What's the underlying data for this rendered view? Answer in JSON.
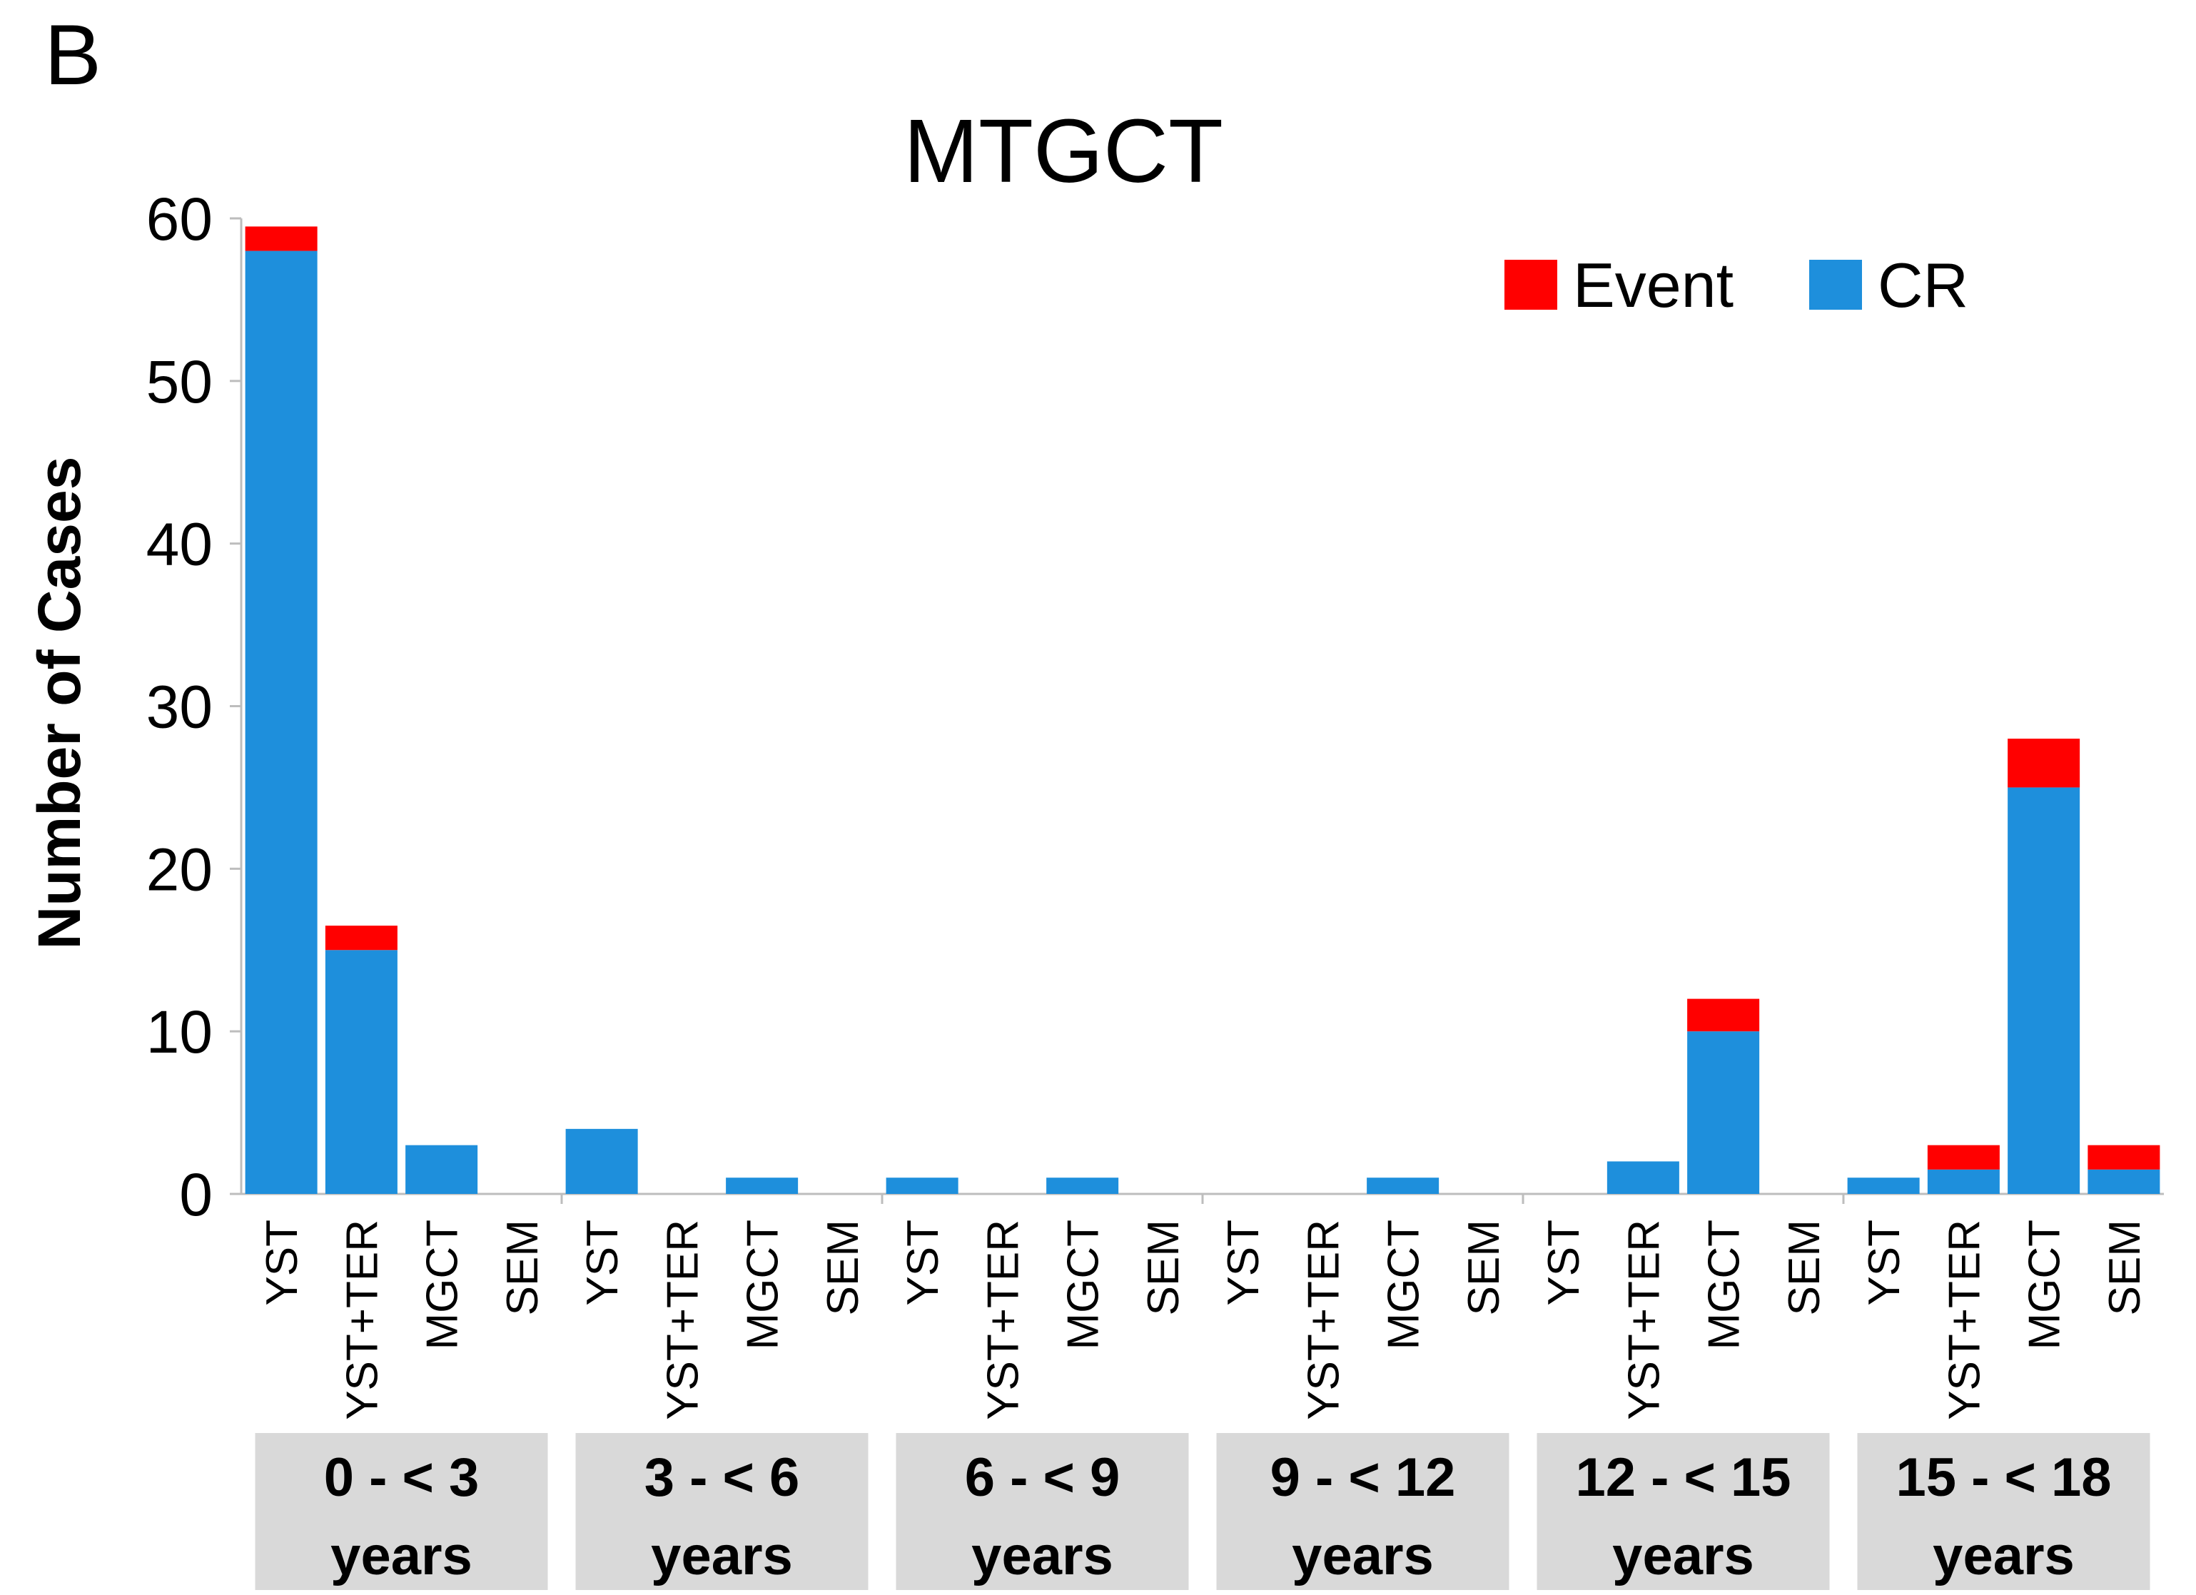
{
  "panel_label": "B",
  "chart_data": {
    "type": "bar",
    "stacked": true,
    "title": "MTGCT",
    "ylabel": "Number of Cases",
    "xlabel": "",
    "ylim": [
      0,
      60
    ],
    "yticks": [
      0,
      10,
      20,
      30,
      40,
      50,
      60
    ],
    "legend_position": "top-right",
    "series_colors": {
      "Event": "#ff0000",
      "CR": "#1e8fdc"
    },
    "legend": [
      "Event",
      "CR"
    ],
    "subcategories": [
      "YST",
      "YST+TER",
      "MGCT",
      "SEM"
    ],
    "groups": [
      {
        "line1": "0 - < 3",
        "line2": "years",
        "CR": [
          58,
          15,
          3,
          0
        ],
        "Event": [
          1.5,
          1.5,
          0,
          0
        ]
      },
      {
        "line1": "3 - < 6",
        "line2": "years",
        "CR": [
          4,
          0,
          1,
          0
        ],
        "Event": [
          0,
          0,
          0,
          0
        ]
      },
      {
        "line1": "6 - < 9",
        "line2": "years",
        "CR": [
          1,
          0,
          1,
          0
        ],
        "Event": [
          0,
          0,
          0,
          0
        ]
      },
      {
        "line1": "9 - < 12",
        "line2": "years",
        "CR": [
          0,
          0,
          1,
          0
        ],
        "Event": [
          0,
          0,
          0,
          0
        ]
      },
      {
        "line1": "12 - < 15",
        "line2": "years",
        "CR": [
          0,
          2,
          10,
          0
        ],
        "Event": [
          0,
          0,
          2,
          0
        ]
      },
      {
        "line1": "15  - < 18",
        "line2": "years",
        "CR": [
          1,
          1.5,
          25,
          1.5
        ],
        "Event": [
          0,
          1.5,
          3,
          1.5
        ]
      }
    ]
  }
}
